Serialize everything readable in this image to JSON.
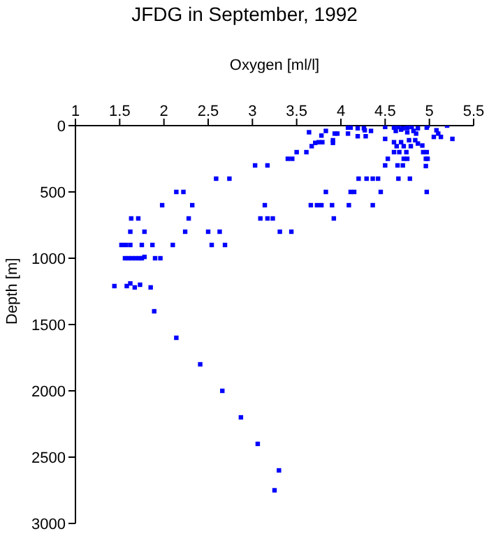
{
  "chart_data": {
    "type": "scatter",
    "title": "JFDG in September, 1992",
    "xlabel": "Oxygen [ml/l]",
    "ylabel": "Depth [m]",
    "xlim": [
      1,
      5.5
    ],
    "xticks": [
      1,
      1.5,
      2,
      2.5,
      3,
      3.5,
      4,
      4.5,
      5,
      5.5
    ],
    "ylim": [
      3000,
      0
    ],
    "yticks": [
      0,
      500,
      1000,
      1500,
      2000,
      2500,
      3000
    ],
    "grid": false,
    "legend": false,
    "marker": "square",
    "series": [
      {
        "color": "#0000ff",
        "x": [
          3.03,
          3.17,
          2.59,
          2.74,
          2.14,
          2.22,
          1.98,
          2.32,
          1.63,
          1.71,
          2.28,
          1.62,
          1.78,
          2.24,
          2.5,
          2.63,
          3.14,
          3.09,
          3.17,
          3.23,
          3.31,
          1.52,
          1.57,
          1.62,
          1.75,
          1.87,
          2.1,
          2.54,
          2.69,
          1.56,
          1.6,
          1.64,
          1.68,
          1.72,
          1.75,
          1.78,
          1.9,
          1.96,
          1.44,
          1.58,
          1.62,
          1.67,
          1.73,
          1.85,
          1.89,
          2.14,
          2.41,
          2.66,
          2.87,
          3.06,
          3.3,
          3.25,
          3.64,
          3.83,
          3.78,
          3.93,
          3.96,
          3.67,
          3.71,
          3.75,
          3.79,
          3.91,
          3.91,
          3.5,
          3.61,
          3.4,
          3.45,
          4.08,
          4.11,
          4.08,
          4.19,
          4.26,
          4.27,
          4.34,
          4.19,
          4.28,
          4.5,
          4.6,
          4.65,
          4.7,
          4.75,
          4.8,
          4.87,
          4.98,
          5.2,
          4.62,
          4.68,
          4.75,
          4.82,
          4.85,
          4.5,
          4.6,
          4.68,
          4.63,
          4.71,
          4.79,
          4.77,
          4.84,
          4.87,
          4.97,
          5.08,
          5.1,
          5.05,
          5.13,
          5.26,
          4.92,
          4.93,
          4.97,
          4.6,
          4.66,
          4.74,
          4.53,
          4.71,
          4.75,
          4.96,
          4.98,
          4.5,
          4.64,
          4.7,
          4.96,
          4.2,
          4.29,
          4.36,
          4.42,
          4.65,
          4.78,
          3.83,
          4.11,
          4.15,
          4.45,
          4.97,
          3.66,
          3.73,
          3.78,
          3.9,
          4.09,
          4.36,
          3.92,
          3.44
        ],
        "values": [
          300,
          300,
          400,
          400,
          500,
          500,
          600,
          600,
          700,
          700,
          700,
          800,
          800,
          800,
          800,
          800,
          600,
          700,
          700,
          700,
          800,
          900,
          900,
          900,
          900,
          900,
          900,
          900,
          900,
          1000,
          1000,
          1000,
          1000,
          1000,
          1000,
          990,
          1000,
          1000,
          1210,
          1210,
          1190,
          1220,
          1200,
          1220,
          1400,
          1600,
          1800,
          2000,
          2200,
          2400,
          2600,
          2750,
          50,
          40,
          75,
          60,
          60,
          155,
          130,
          125,
          125,
          110,
          130,
          200,
          200,
          250,
          250,
          15,
          15,
          60,
          20,
          20,
          35,
          40,
          80,
          80,
          10,
          15,
          10,
          20,
          15,
          10,
          20,
          0,
          0,
          40,
          30,
          50,
          40,
          60,
          100,
          125,
          125,
          155,
          155,
          155,
          110,
          110,
          135,
          15,
          35,
          60,
          85,
          85,
          100,
          150,
          200,
          200,
          200,
          200,
          200,
          250,
          250,
          250,
          250,
          250,
          300,
          300,
          300,
          305,
          400,
          400,
          400,
          400,
          400,
          400,
          500,
          500,
          500,
          500,
          500,
          600,
          600,
          600,
          600,
          600,
          600,
          700,
          800
        ]
      }
    ]
  }
}
